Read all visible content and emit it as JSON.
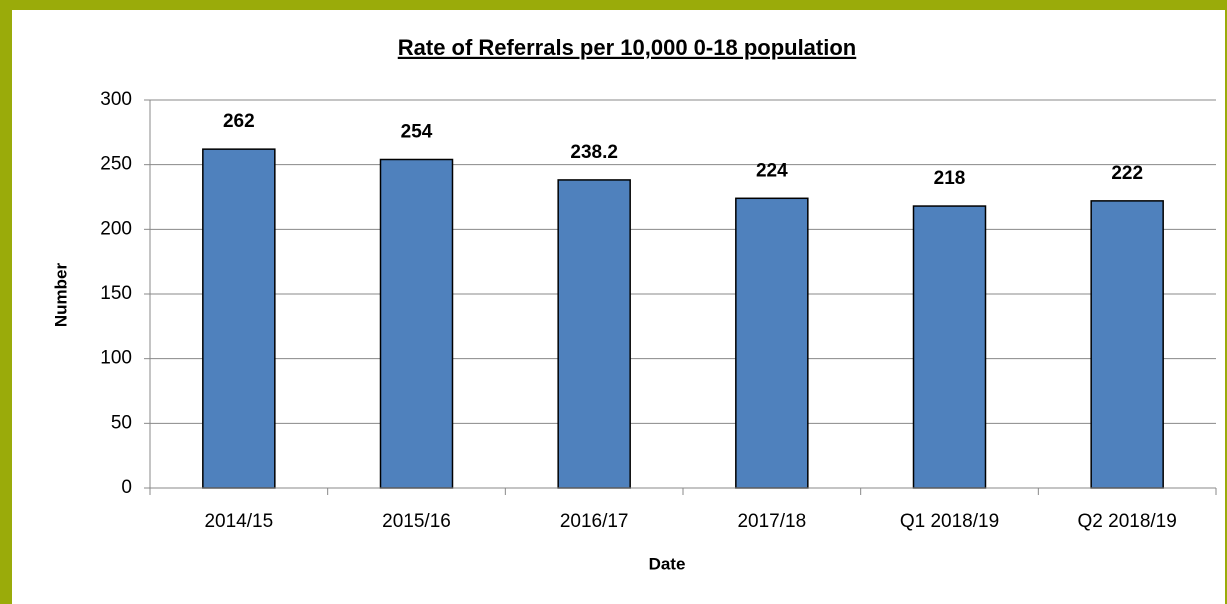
{
  "chart_data": {
    "type": "bar",
    "title": "Rate of Referrals per 10,000 0-18 population",
    "x_label": "Date",
    "y_label": "Number",
    "categories": [
      "2014/15",
      "2015/16",
      "2016/17",
      "2017/18",
      "Q1 2018/19",
      "Q2 2018/19"
    ],
    "values": [
      262,
      254,
      238.2,
      224,
      218,
      222
    ],
    "color": "#4f81bd",
    "ylim": [
      0,
      300
    ],
    "yticks": [
      0,
      50,
      100,
      150,
      200,
      250,
      300
    ],
    "grid": true
  }
}
